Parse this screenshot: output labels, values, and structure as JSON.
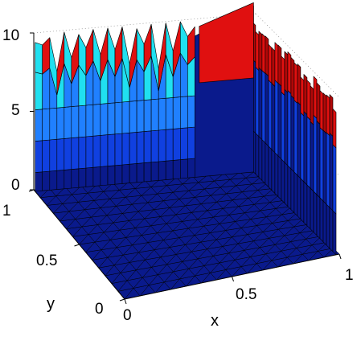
{
  "chart_data": {
    "type": "surface",
    "title": "",
    "xlabel": "x",
    "ylabel": "y",
    "zlabel": "",
    "xlim": [
      0,
      1
    ],
    "ylim": [
      0,
      1
    ],
    "zlim": [
      0,
      10
    ],
    "x_ticks": [
      "0",
      "0.5",
      "1"
    ],
    "y_ticks": [
      "0",
      "0.5",
      "1"
    ],
    "z_ticks": [
      "0",
      "5",
      "10"
    ],
    "colormap": "jet",
    "grid": true,
    "description_values": {
      "floor_z": 0,
      "wall_peak_z": 10
    }
  }
}
